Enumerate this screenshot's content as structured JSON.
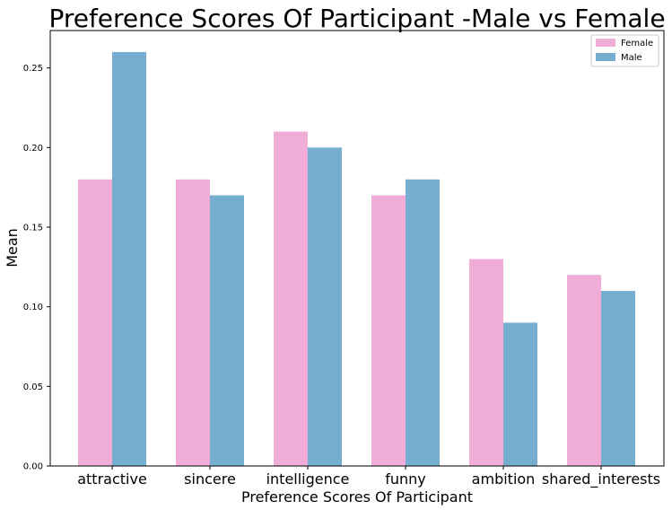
{
  "chart_data": {
    "type": "bar",
    "title": "Preference Scores Of Participant -Male vs Female",
    "xlabel": "Preference Scores Of Participant",
    "ylabel": "Mean",
    "categories": [
      "attractive",
      "sincere",
      "intelligence",
      "funny",
      "ambition",
      "shared_interests"
    ],
    "series": [
      {
        "name": "Female",
        "values": [
          0.18,
          0.18,
          0.21,
          0.17,
          0.13,
          0.12
        ],
        "color": "#efadd8"
      },
      {
        "name": "Male",
        "values": [
          0.26,
          0.17,
          0.2,
          0.18,
          0.09,
          0.11
        ],
        "color": "#76aed0"
      }
    ],
    "ylim": [
      0,
      0.2735
    ],
    "yticks": [
      "0.00",
      "0.05",
      "0.10",
      "0.15",
      "0.20",
      "0.25"
    ],
    "legend_position": "top-right",
    "grid": false
  }
}
